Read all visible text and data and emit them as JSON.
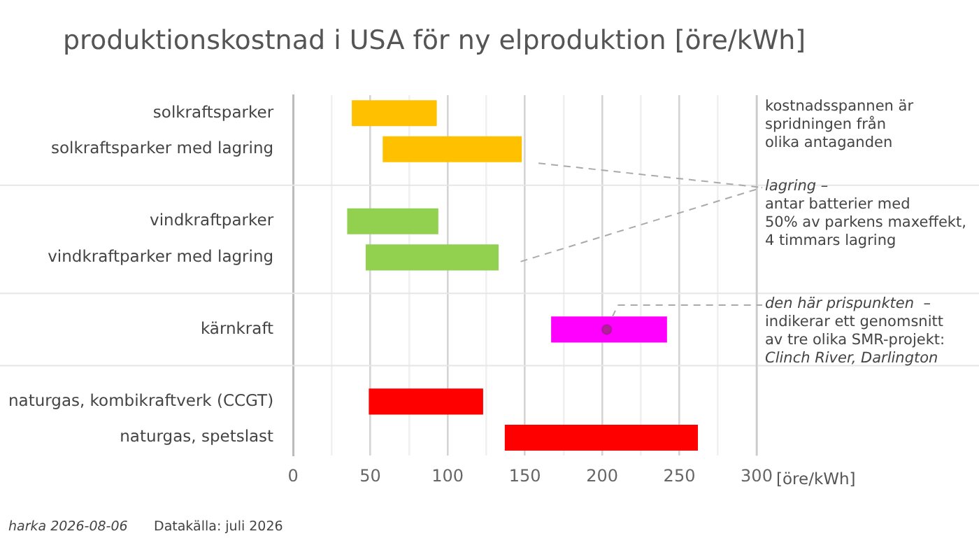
{
  "chart_data": {
    "type": "bar",
    "orientation": "horizontal",
    "title": "produktionskostnad i USA för ny elproduktion [öre/kWh]",
    "xlabel": "[öre/kWh]",
    "categories": [
      "solkraftsparker",
      "solkraftsparker med lagring",
      null,
      "vindkraftparker",
      "vindkraftparker med lagring",
      null,
      "kärnkraft",
      null,
      "naturgas, kombikraftverk (CCGT)",
      "naturgas, spetslast"
    ],
    "series": [
      {
        "values": [
          55,
          90,
          null,
          59,
          86,
          null,
          75,
          null,
          74,
          125
        ],
        "base": [
          38,
          58,
          null,
          35,
          47,
          null,
          167,
          null,
          49,
          137
        ],
        "colors": [
          "#ffc000",
          "#ffc000",
          null,
          "#92d050",
          "#92d050",
          null,
          "#ff00ff",
          null,
          "#ff0000",
          "#ff0000"
        ]
      },
      {
        "type": "scatter",
        "x": [
          "kärnkraft"
        ],
        "values": [
          203
        ],
        "color": "#b0209a",
        "marker": "circle"
      }
    ],
    "xlim": [
      0,
      300
    ],
    "xticks": [
      0,
      {
        "value": 25,
        "label": null
      },
      50,
      {
        "value": 75,
        "label": null
      },
      100,
      {
        "value": 125,
        "label": null
      },
      150,
      {
        "value": 175,
        "label": null
      },
      200,
      {
        "value": 225,
        "label": null
      },
      250,
      {
        "value": 275,
        "label": null
      },
      300
    ],
    "grid": "x",
    "legend": false,
    "annotations": [
      "kostnadsspannen är\nspridningen från\nolika antaganden",
      "lagring –\nantar batterier med\n50% av parkens maxeffekt,\n4 timmars lagring",
      "den här prispunkten  –\nindikerar ett genomsnitt\nav tre olika SMR-projekt:\nClinch River, Darlington",
      "harka 2026-08-06",
      "Datakälla: juli 2026"
    ]
  }
}
